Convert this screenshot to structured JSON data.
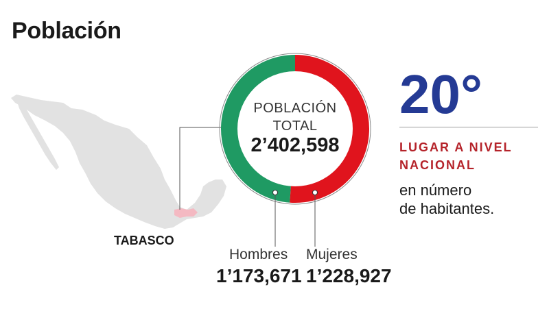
{
  "header": {
    "title": "Población"
  },
  "map": {
    "state_label": "TABASCO",
    "highlight_color": "#f4b9c2",
    "land_color": "#e2e2e2"
  },
  "chart_data": {
    "type": "pie",
    "title": "",
    "center_label_line1": "POBLACIÓN",
    "center_label_line2": "TOTAL",
    "total": "2’402,598",
    "slices": [
      {
        "label": "Hombres",
        "display": "1’173,671",
        "value": 1173671,
        "color": "#1f9a63"
      },
      {
        "label": "Mujeres",
        "display": "1’228,927",
        "value": 1228927,
        "color": "#e0141d"
      }
    ]
  },
  "rank": {
    "value": "20°",
    "caption_line1": "LUGAR A NIVEL",
    "caption_line2": "NACIONAL",
    "desc_line1": "en número",
    "desc_line2": "de habitantes.",
    "color": "#243a94",
    "caption_color": "#b5232a"
  }
}
